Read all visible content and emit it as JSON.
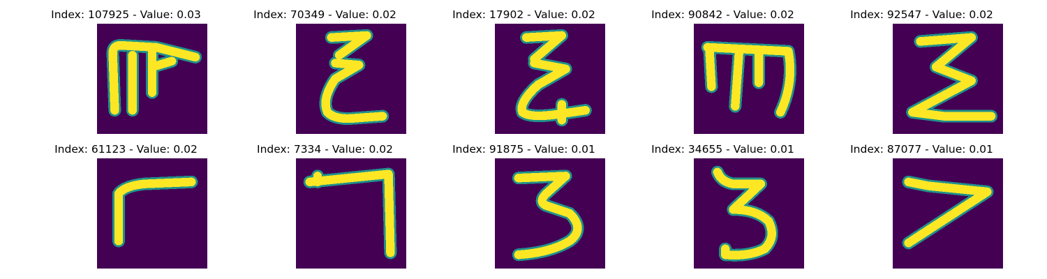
{
  "colors": {
    "background": "#440154",
    "mid": "#21918c",
    "stroke": "#fde725"
  },
  "panels": [
    {
      "title": "Index: 107925 - Value: 0.03",
      "glyph": "character resembling 'F' with extra vertical stroke"
    },
    {
      "title": "Index: 70349 - Value: 0.02",
      "glyph": "character resembling 'E'"
    },
    {
      "title": "Index: 17902 - Value: 0.02",
      "glyph": "character resembling 'E'"
    },
    {
      "title": "Index: 90842 - Value: 0.02",
      "glyph": "character resembling 'm'"
    },
    {
      "title": "Index: 92547 - Value: 0.02",
      "glyph": "character resembling 'Σ'"
    },
    {
      "title": "Index: 61123 - Value: 0.02",
      "glyph": "character resembling 'r'"
    },
    {
      "title": "Index: 7334 - Value: 0.02",
      "glyph": "character resembling '7' / 'ㄱ'"
    },
    {
      "title": "Index: 91875 - Value: 0.01",
      "glyph": "digit 3"
    },
    {
      "title": "Index: 34655 - Value: 0.01",
      "glyph": "digit 3"
    },
    {
      "title": "Index: 87077 - Value: 0.01",
      "glyph": "digit 7"
    }
  ]
}
